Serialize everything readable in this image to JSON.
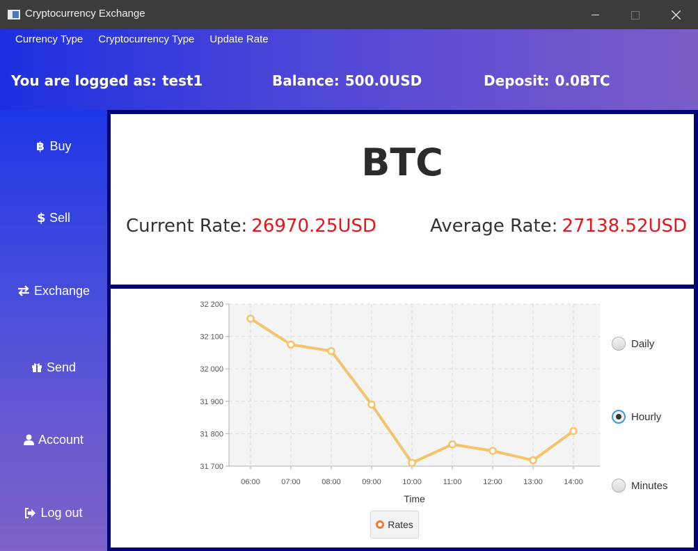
{
  "window": {
    "title": "Cryptocurrency Exchange"
  },
  "menu": {
    "items": [
      "Currency Type",
      "Cryptocurrency Type",
      "Update Rate"
    ]
  },
  "header": {
    "user_label": "You are logged as:",
    "user_value": "test1",
    "balance_label": "Balance:",
    "balance_value": "500.0USD",
    "deposit_label": "Deposit:",
    "deposit_value": "0.0BTC"
  },
  "sidebar": {
    "items": [
      {
        "label": "Buy",
        "icon": "bitcoin-icon"
      },
      {
        "label": "Sell",
        "icon": "dollar-icon"
      },
      {
        "label": "Exchange",
        "icon": "exchange-arrows-icon"
      },
      {
        "label": "Send",
        "icon": "gift-icon"
      },
      {
        "label": "Account",
        "icon": "user-icon"
      },
      {
        "label": "Log out",
        "icon": "sign-out-icon"
      }
    ]
  },
  "coin": {
    "symbol": "BTC",
    "current_rate_label": "Current Rate:",
    "current_rate_value": "26970.25USD",
    "average_rate_label": "Average Rate:",
    "average_rate_value": "27138.52USD"
  },
  "period": {
    "options": [
      "Daily",
      "Hourly",
      "Minutes"
    ],
    "selected": "Hourly"
  },
  "colors": {
    "accent_gradient_start": "#1c2fe0",
    "accent_gradient_end": "#7a5ec8",
    "rate_value": "#e8141a",
    "series_line": "#f5c36a",
    "legend_marker": "#f07a2a"
  },
  "chart_data": {
    "type": "line",
    "title": "",
    "xlabel": "Time",
    "ylabel": "",
    "categories": [
      "06:00",
      "07:00",
      "08:00",
      "09:00",
      "10:00",
      "11:00",
      "12:00",
      "13:00",
      "14:00"
    ],
    "series": [
      {
        "name": "Rates",
        "values": [
          32155,
          32075,
          32055,
          31890,
          31710,
          31767,
          31747,
          31718,
          31808
        ]
      }
    ],
    "ylim": [
      31700,
      32200
    ],
    "yticks": [
      31700,
      31800,
      31900,
      32000,
      32100,
      32200
    ],
    "ytick_labels": [
      "31 700",
      "31 800",
      "31 900",
      "32 000",
      "32 100",
      "32 200"
    ],
    "grid": true,
    "legend": "bottom-center"
  }
}
